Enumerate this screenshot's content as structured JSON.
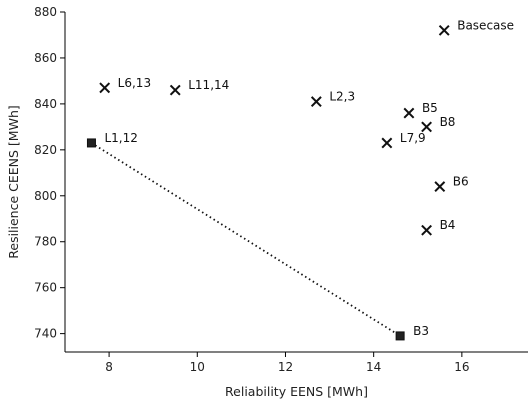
{
  "chart_data": {
    "type": "scatter",
    "title": "",
    "xlabel": "Reliability EENS [MWh]",
    "ylabel": "Resilience CEENS [MWh]",
    "xlim": [
      7,
      17.5
    ],
    "ylim": [
      732,
      880
    ],
    "x_ticks": [
      8,
      10,
      12,
      14,
      16
    ],
    "y_ticks": [
      740,
      760,
      780,
      800,
      820,
      840,
      860,
      880
    ],
    "grid": false,
    "series": [
      {
        "marker": "x",
        "points": [
          {
            "label": "Basecase",
            "x": 15.6,
            "y": 872
          },
          {
            "label": "L6,13",
            "x": 7.9,
            "y": 847
          },
          {
            "label": "L11,14",
            "x": 9.5,
            "y": 846
          },
          {
            "label": "L2,3",
            "x": 12.7,
            "y": 841
          },
          {
            "label": "B5",
            "x": 14.8,
            "y": 836
          },
          {
            "label": "B8",
            "x": 15.2,
            "y": 830
          },
          {
            "label": "L7,9",
            "x": 14.3,
            "y": 823
          },
          {
            "label": "B6",
            "x": 15.5,
            "y": 804
          },
          {
            "label": "B4",
            "x": 15.2,
            "y": 785
          }
        ]
      },
      {
        "marker": "square",
        "line": "dotted",
        "points": [
          {
            "label": "L1,12",
            "x": 7.6,
            "y": 823
          },
          {
            "label": "B3",
            "x": 14.6,
            "y": 739
          }
        ]
      }
    ]
  }
}
